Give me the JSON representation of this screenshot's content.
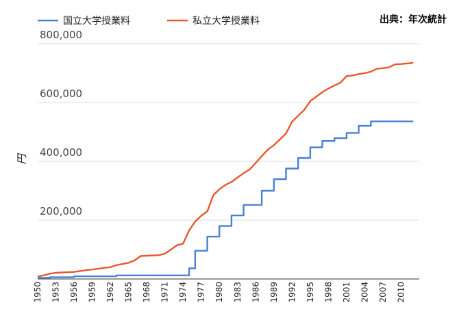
{
  "chart_data": {
    "type": "line",
    "title": "",
    "source_note": "出典：年次統計",
    "xlabel": "",
    "ylabel": "円",
    "ylim": [
      0,
      800000
    ],
    "yticks": [
      200000,
      400000,
      600000,
      800000
    ],
    "ytick_labels": [
      "200,000",
      "400,000",
      "600,000",
      "800,000"
    ],
    "xlim": [
      1950,
      2013
    ],
    "xtick_labels": [
      "1950",
      "1953",
      "1956",
      "1959",
      "1962",
      "1965",
      "1968",
      "1971",
      "1974",
      "1977",
      "1980",
      "1983",
      "1986",
      "1989",
      "1992",
      "1995",
      "1998",
      "2001",
      "2004",
      "2007",
      "2010"
    ],
    "grid": true,
    "legend_position": "top-left",
    "series": [
      {
        "name": "国立大学授業料",
        "color": "#4a7fd4",
        "step": true,
        "x": [
          1950,
          1952,
          1956,
          1963,
          1972,
          1975,
          1976,
          1978,
          1980,
          1982,
          1984,
          1986,
          1987,
          1989,
          1990,
          1991,
          1992,
          1993,
          1994,
          1995,
          1996,
          1997,
          1998,
          1999,
          2000,
          2001,
          2002,
          2003,
          2004,
          2005,
          2012
        ],
        "y": [
          3600,
          6000,
          9000,
          12000,
          12000,
          36000,
          96000,
          144000,
          180000,
          216000,
          252000,
          252000,
          300000,
          339600,
          339600,
          375600,
          375600,
          411600,
          411600,
          447600,
          447600,
          469200,
          469200,
          478800,
          478800,
          496800,
          496800,
          520800,
          520800,
          535800,
          535800
        ]
      },
      {
        "name": "私立大学授業料",
        "color": "#e8572e",
        "step": false,
        "x": [
          1950,
          1951,
          1952,
          1953,
          1954,
          1955,
          1956,
          1957,
          1958,
          1959,
          1960,
          1961,
          1962,
          1963,
          1964,
          1965,
          1966,
          1967,
          1968,
          1969,
          1970,
          1971,
          1972,
          1973,
          1974,
          1975,
          1976,
          1977,
          1978,
          1979,
          1980,
          1981,
          1982,
          1983,
          1984,
          1985,
          1986,
          1987,
          1988,
          1989,
          1990,
          1991,
          1992,
          1993,
          1994,
          1995,
          1996,
          1997,
          1998,
          1999,
          2000,
          2001,
          2002,
          2003,
          2004,
          2005,
          2006,
          2007,
          2008,
          2009,
          2010,
          2011,
          2012
        ],
        "y": [
          8000,
          12000,
          18000,
          21000,
          22000,
          23000,
          24000,
          27000,
          30000,
          32000,
          35000,
          38000,
          40000,
          47000,
          51000,
          55000,
          63000,
          78000,
          79000,
          80000,
          81000,
          86000,
          100000,
          115000,
          120000,
          165000,
          195000,
          215000,
          230000,
          285000,
          305000,
          320000,
          330000,
          345000,
          360000,
          372000,
          395000,
          418000,
          440000,
          455000,
          475000,
          495000,
          535000,
          555000,
          575000,
          605000,
          620000,
          635000,
          648000,
          658000,
          668000,
          690000,
          692000,
          697000,
          700000,
          705000,
          715000,
          717000,
          720000,
          730000,
          731000,
          733000,
          735000
        ]
      }
    ]
  }
}
